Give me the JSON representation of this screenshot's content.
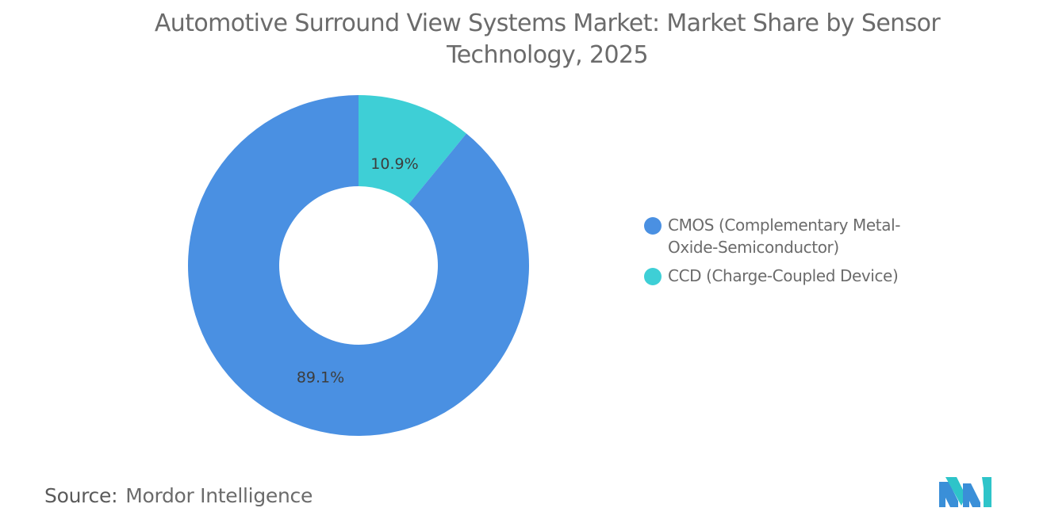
{
  "header": {
    "title": "Automotive Surround View Systems Market: Market Share by Sensor Technology, 2025"
  },
  "chart_data": {
    "type": "pie",
    "variant": "donut",
    "title": "Automotive Surround View Systems Market: Market Share by Sensor Technology, 2025",
    "categories": [
      "CMOS (Complementary Metal-Oxide-Semiconductor)",
      "CCD (Charge-Coupled Device)"
    ],
    "values": [
      89.1,
      10.9
    ],
    "value_labels": [
      "89.1%",
      "10.9%"
    ],
    "colors": [
      "#4a90e2",
      "#3ecfd6"
    ],
    "legend_position": "right",
    "start_angle": "top, clockwise from CCD"
  },
  "legend": {
    "items": [
      {
        "label": "CMOS (Complementary Metal-Oxide-Semiconductor)",
        "color": "#4a90e2"
      },
      {
        "label": "CCD (Charge-Coupled Device)",
        "color": "#3ecfd6"
      }
    ]
  },
  "footer": {
    "source_label": "Source:",
    "source_value": "Mordor Intelligence",
    "logo_icon": "mordor-intelligence-logo-icon"
  }
}
